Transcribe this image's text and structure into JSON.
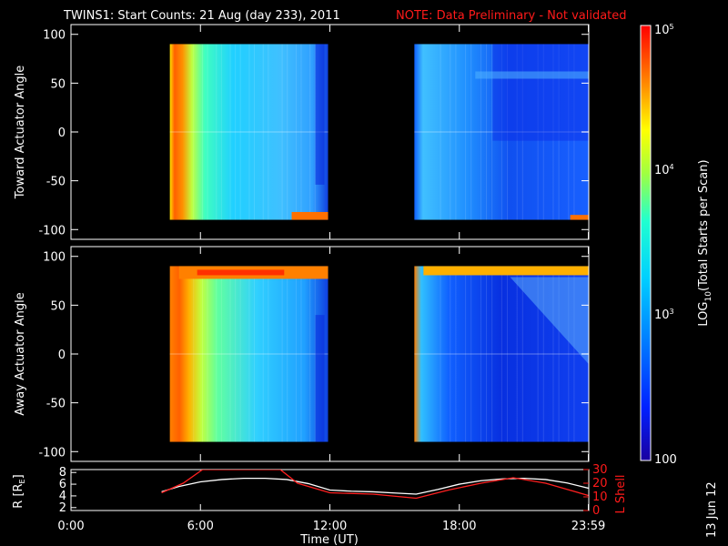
{
  "header": {
    "title": "TWINS1: Start Counts: 21 Aug (day 233), 2011",
    "note": "NOTE: Data Preliminary - Not validated"
  },
  "side_label": "13 Jun 12",
  "colors": {
    "background": "#000000",
    "text": "#ffffff",
    "note": "#ff1a1a",
    "orbit_r": "#ffffff",
    "orbit_l": "#ff2020"
  },
  "chart_data": [
    {
      "type": "heatmap",
      "title": "",
      "xlabel": "",
      "ylabel": "Toward Actuator Angle",
      "xlim_hours": [
        0,
        24
      ],
      "ylim": [
        -110,
        110
      ],
      "yticks": [
        100,
        50,
        0,
        -50,
        -100
      ],
      "data_blocks": [
        {
          "x_start": "04:35",
          "x_end": "11:55",
          "y_range": [
            -90,
            90
          ]
        },
        {
          "x_start": "15:55",
          "x_end": "23:59",
          "y_range": [
            -90,
            90
          ]
        }
      ],
      "colorbar": {
        "label": "LOG10(Total Starts per Scan)",
        "scale": "log",
        "range": [
          100,
          100000
        ],
        "tick_labels": [
          "10^5",
          "10^4",
          "10^3",
          "100"
        ]
      }
    },
    {
      "type": "heatmap",
      "title": "",
      "xlabel": "",
      "ylabel": "Away Actuator Angle",
      "xlim_hours": [
        0,
        24
      ],
      "ylim": [
        -110,
        110
      ],
      "yticks": [
        100,
        50,
        0,
        -50,
        -100
      ],
      "data_blocks": [
        {
          "x_start": "04:35",
          "x_end": "11:55",
          "y_range": [
            -90,
            90
          ]
        },
        {
          "x_start": "15:55",
          "x_end": "23:59",
          "y_range": [
            -90,
            90
          ]
        }
      ]
    },
    {
      "type": "line",
      "title": "",
      "xlabel": "Time (UT)",
      "x_tick_labels": [
        "0:00",
        "6:00",
        "12:00",
        "18:00",
        "23:59"
      ],
      "x_tick_hours": [
        0,
        6,
        12,
        18,
        23.98
      ],
      "y_left": {
        "label": "R [R_E]",
        "ticks": [
          2,
          4,
          6,
          8
        ],
        "range": [
          1.5,
          8.5
        ]
      },
      "y_right": {
        "label": "L Shell",
        "ticks": [
          0,
          10,
          20,
          30
        ],
        "range": [
          0,
          30
        ]
      },
      "series": [
        {
          "axis": "left",
          "x": [
            4.2,
            5,
            6,
            7,
            8,
            9,
            10,
            11,
            12,
            13,
            14,
            15,
            16,
            17,
            18,
            19,
            20,
            21,
            22,
            23,
            24
          ],
          "y": [
            4.7,
            5.6,
            6.4,
            6.8,
            7.0,
            7.0,
            6.8,
            6.1,
            5.0,
            4.8,
            4.7,
            4.5,
            4.3,
            5.1,
            6.0,
            6.6,
            6.9,
            7.0,
            6.8,
            6.2,
            5.3
          ]
        },
        {
          "axis": "right",
          "x": [
            4.2,
            5.2,
            6.1,
            9.7,
            10.5,
            12.0,
            14.0,
            16.0,
            17.5,
            19.0,
            20.5,
            22.0,
            23.98
          ],
          "y": [
            13,
            20,
            30,
            30,
            20,
            13,
            12,
            9,
            15,
            20,
            24,
            20,
            11
          ]
        }
      ]
    }
  ]
}
